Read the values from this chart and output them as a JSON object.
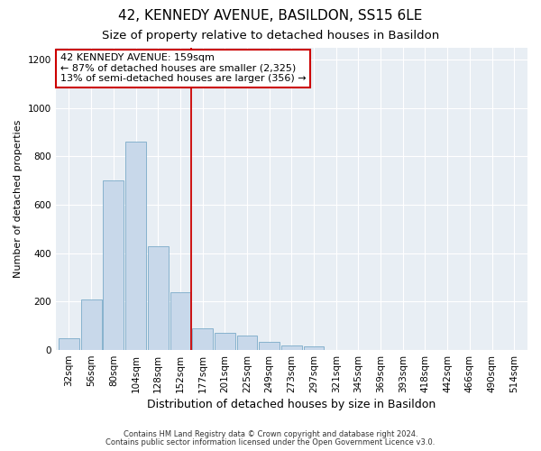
{
  "title": "42, KENNEDY AVENUE, BASILDON, SS15 6LE",
  "subtitle": "Size of property relative to detached houses in Basildon",
  "xlabel": "Distribution of detached houses by size in Basildon",
  "ylabel": "Number of detached properties",
  "footnote1": "Contains HM Land Registry data © Crown copyright and database right 2024.",
  "footnote2": "Contains public sector information licensed under the Open Government Licence v3.0.",
  "bar_labels": [
    "32sqm",
    "56sqm",
    "80sqm",
    "104sqm",
    "128sqm",
    "152sqm",
    "177sqm",
    "201sqm",
    "225sqm",
    "249sqm",
    "273sqm",
    "297sqm",
    "321sqm",
    "345sqm",
    "369sqm",
    "393sqm",
    "418sqm",
    "442sqm",
    "466sqm",
    "490sqm",
    "514sqm"
  ],
  "bar_values": [
    50,
    210,
    700,
    860,
    430,
    240,
    90,
    70,
    60,
    35,
    20,
    15,
    0,
    0,
    0,
    0,
    0,
    0,
    0,
    0,
    0
  ],
  "bar_color": "#c8d8ea",
  "bar_edge_color": "#7aaac8",
  "vline_x_index": 5.5,
  "vline_color": "#cc0000",
  "annotation_text": "42 KENNEDY AVENUE: 159sqm\n← 87% of detached houses are smaller (2,325)\n13% of semi-detached houses are larger (356) →",
  "annotation_box_color": "#ffffff",
  "annotation_box_edge": "#cc0000",
  "ylim": [
    0,
    1250
  ],
  "yticks": [
    0,
    200,
    400,
    600,
    800,
    1000,
    1200
  ],
  "plot_bg_color": "#e8eef4",
  "title_fontsize": 11,
  "subtitle_fontsize": 9.5,
  "annot_fontsize": 8,
  "ylabel_fontsize": 8,
  "xlabel_fontsize": 9,
  "tick_fontsize": 7.5,
  "footnote_fontsize": 6
}
